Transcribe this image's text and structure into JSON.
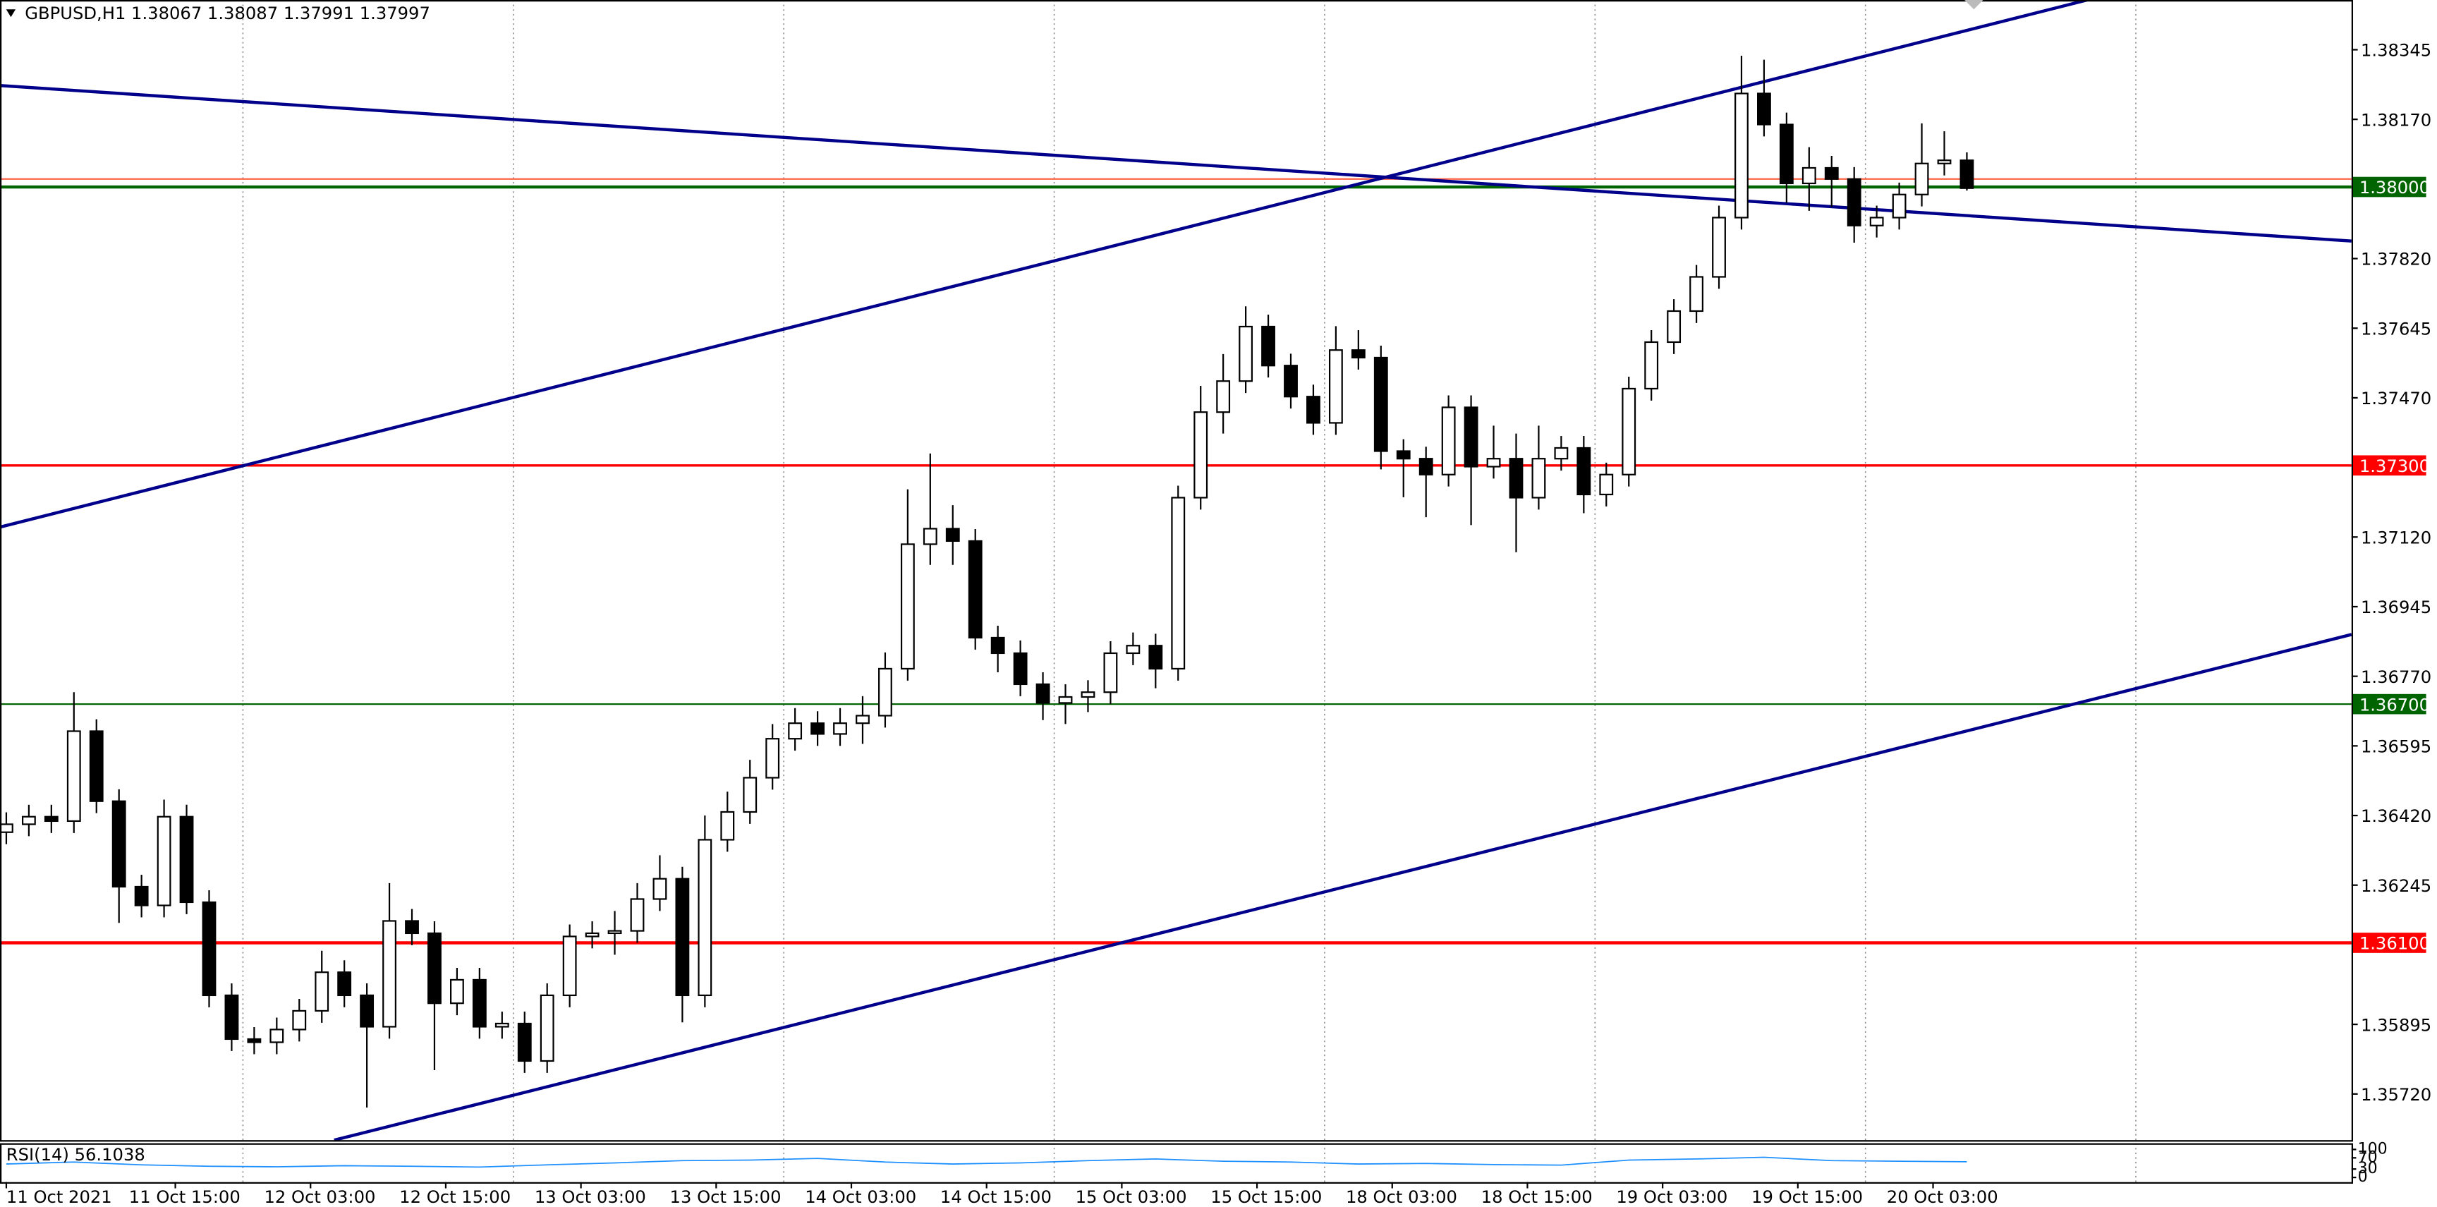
{
  "chart_data": {
    "type": "candlestick",
    "title": "GBPUSD,H1  1.38067 1.38087 1.37991 1.37997",
    "ohlc": {
      "open": [
        1.36378,
        1.36398,
        1.36417,
        1.36406,
        1.36632,
        1.36456,
        1.36241,
        1.36194,
        1.36417,
        1.36202,
        1.35968,
        1.35858,
        1.3585,
        1.35882,
        1.35929,
        1.36026,
        1.35968,
        1.35889,
        1.36155,
        1.36124,
        1.35948,
        1.36007,
        1.35889,
        1.35897,
        1.35803,
        1.35968,
        1.36116,
        1.36124,
        1.3613,
        1.3621,
        1.36261,
        1.35968,
        1.36359,
        1.36429,
        1.36515,
        1.36613,
        1.36652,
        1.36625,
        1.36652,
        1.36671,
        1.36789,
        1.37102,
        1.37141,
        1.3711,
        1.36867,
        1.36828,
        1.3675,
        1.36703,
        1.36718,
        1.3673,
        1.36828,
        1.36847,
        1.36789,
        1.37219,
        1.37434,
        1.37512,
        1.37649,
        1.37551,
        1.37473,
        1.37407,
        1.3759,
        1.37571,
        1.37336,
        1.37317,
        1.37277,
        1.37446,
        1.37297,
        1.37317,
        1.37219,
        1.37317,
        1.37344,
        1.37227,
        1.37277,
        1.37493,
        1.3761,
        1.37688,
        1.37774,
        1.37923,
        1.38235,
        1.38157,
        1.38009,
        1.38048,
        1.3802,
        1.37903,
        1.37923,
        1.37981,
        1.38059,
        1.38067
      ],
      "high": [
        1.36428,
        1.36447,
        1.36447,
        1.3673,
        1.36662,
        1.36486,
        1.36271,
        1.3646,
        1.36447,
        1.36232,
        1.35998,
        1.35888,
        1.35912,
        1.35959,
        1.3608,
        1.36056,
        1.35998,
        1.3625,
        1.36185,
        1.36154,
        1.36037,
        1.36037,
        1.35927,
        1.35927,
        1.35998,
        1.36146,
        1.36154,
        1.3618,
        1.3625,
        1.3632,
        1.36291,
        1.3642,
        1.3648,
        1.3656,
        1.3665,
        1.3669,
        1.36682,
        1.3669,
        1.3672,
        1.3683,
        1.3724,
        1.3733,
        1.372,
        1.3714,
        1.36897,
        1.3686,
        1.3678,
        1.3675,
        1.3676,
        1.36858,
        1.3688,
        1.36877,
        1.37249,
        1.375,
        1.3758,
        1.377,
        1.37679,
        1.37581,
        1.37503,
        1.3765,
        1.3764,
        1.37601,
        1.37366,
        1.37347,
        1.37476,
        1.37476,
        1.374,
        1.3738,
        1.374,
        1.37374,
        1.37374,
        1.37307,
        1.37523,
        1.3764,
        1.37718,
        1.37804,
        1.37953,
        1.3833,
        1.3832,
        1.38187,
        1.381,
        1.38078,
        1.3805,
        1.37953,
        1.38011,
        1.3816,
        1.3814,
        1.38087
      ],
      "low": [
        1.36348,
        1.36368,
        1.36376,
        1.36376,
        1.36426,
        1.3615,
        1.36164,
        1.36164,
        1.36172,
        1.35938,
        1.35828,
        1.3582,
        1.3582,
        1.35852,
        1.35899,
        1.35938,
        1.35686,
        1.35859,
        1.36094,
        1.3578,
        1.35918,
        1.35859,
        1.35859,
        1.35773,
        1.35773,
        1.35938,
        1.36086,
        1.3607,
        1.361,
        1.3618,
        1.359,
        1.35938,
        1.36329,
        1.36399,
        1.36485,
        1.36583,
        1.36595,
        1.36595,
        1.366,
        1.36641,
        1.36759,
        1.3705,
        1.3705,
        1.36837,
        1.3678,
        1.3672,
        1.3666,
        1.3665,
        1.3668,
        1.367,
        1.36798,
        1.3674,
        1.36759,
        1.37189,
        1.3738,
        1.37482,
        1.37521,
        1.37443,
        1.37377,
        1.37377,
        1.37541,
        1.3729,
        1.3722,
        1.3717,
        1.37247,
        1.3715,
        1.37267,
        1.37082,
        1.37189,
        1.37287,
        1.3718,
        1.37197,
        1.37247,
        1.37463,
        1.3758,
        1.37658,
        1.37744,
        1.37893,
        1.38127,
        1.3796,
        1.3794,
        1.3795,
        1.3786,
        1.37873,
        1.37893,
        1.37951,
        1.38029,
        1.37991
      ],
      "close": [
        1.36398,
        1.36417,
        1.36406,
        1.36632,
        1.36456,
        1.36241,
        1.36194,
        1.36417,
        1.36202,
        1.35968,
        1.35858,
        1.3585,
        1.35882,
        1.35929,
        1.36026,
        1.35968,
        1.35889,
        1.36155,
        1.36124,
        1.35948,
        1.36007,
        1.35889,
        1.35897,
        1.35803,
        1.35968,
        1.36116,
        1.36124,
        1.3613,
        1.3621,
        1.36261,
        1.35968,
        1.36359,
        1.36429,
        1.36515,
        1.36613,
        1.36652,
        1.36625,
        1.36652,
        1.36671,
        1.36789,
        1.37102,
        1.37141,
        1.3711,
        1.36867,
        1.36828,
        1.3675,
        1.36703,
        1.36718,
        1.3673,
        1.36828,
        1.36847,
        1.36789,
        1.37219,
        1.37434,
        1.37512,
        1.37649,
        1.37551,
        1.37473,
        1.37407,
        1.3759,
        1.37571,
        1.37336,
        1.37317,
        1.37277,
        1.37446,
        1.37297,
        1.37317,
        1.37219,
        1.37317,
        1.37344,
        1.37227,
        1.37277,
        1.37493,
        1.3761,
        1.37688,
        1.37774,
        1.37923,
        1.38235,
        1.38157,
        1.38009,
        1.38048,
        1.3802,
        1.37903,
        1.37923,
        1.37981,
        1.38059,
        1.38067,
        1.37997
      ]
    },
    "bull_color": "#ffffff",
    "bear_color": "#000000",
    "xlim": [
      -0.28,
      104.07
    ],
    "ylim": [
      1.35604,
      1.3847
    ],
    "yticks": [
      1.38345,
      {
        "value": 1.3817,
        "label": "1.38170"
      },
      {
        "value": 1.3782,
        "label": "1.37820"
      },
      1.37645,
      {
        "value": 1.3747,
        "label": "1.37470"
      },
      {
        "value": 1.3712,
        "label": "1.37120"
      },
      1.36945,
      {
        "value": 1.3677,
        "label": "1.36770"
      },
      1.36595,
      {
        "value": 1.3642,
        "label": "1.36420"
      },
      1.36245,
      1.35895,
      {
        "value": 1.3572,
        "label": "1.35720"
      }
    ],
    "xticks": [
      {
        "value": 0,
        "label": "11 Oct 2021"
      },
      {
        "value": 7.5,
        "label": "11 Oct 15:00"
      },
      {
        "value": 13.5,
        "label": "12 Oct 03:00"
      },
      {
        "value": 19.5,
        "label": "12 Oct 15:00"
      },
      {
        "value": 25.5,
        "label": "13 Oct 03:00"
      },
      {
        "value": 31.5,
        "label": "13 Oct 15:00"
      },
      {
        "value": 37.5,
        "label": "14 Oct 03:00"
      },
      {
        "value": 43.5,
        "label": "14 Oct 15:00"
      },
      {
        "value": 49.5,
        "label": "15 Oct 03:00"
      },
      {
        "value": 55.5,
        "label": "15 Oct 15:00"
      },
      {
        "value": 61.5,
        "label": "18 Oct 03:00"
      },
      {
        "value": 67.5,
        "label": "18 Oct 15:00"
      },
      {
        "value": 73.5,
        "label": "19 Oct 03:00"
      },
      {
        "value": 79.5,
        "label": "19 Oct 15:00"
      },
      {
        "value": 85.5,
        "label": "20 Oct 03:00"
      }
    ],
    "vgrid": [
      10.5,
      22.5,
      34.5,
      46.5,
      58.5,
      70.5,
      82.5,
      94.5
    ],
    "levels": [
      {
        "value": 1.3802,
        "color": "#ff6347",
        "width": 1
      },
      {
        "value": 1.38,
        "label": "1.38000",
        "color": "#006400",
        "width": 2
      },
      {
        "value": 1.373,
        "label": "1.37300",
        "color": "#ff0000",
        "width": 1.5
      },
      {
        "value": 1.367,
        "label": "1.36700",
        "color": "#006400",
        "width": 1
      },
      {
        "value": 1.361,
        "label": "1.36100",
        "color": "#ff0000",
        "width": 2
      }
    ],
    "trendlines": [
      {
        "color": "#00008b",
        "points": [
          [
            -0.28,
            1.38255
          ],
          [
            104.07,
            1.37864
          ]
        ]
      },
      {
        "color": "#00008b",
        "points": [
          [
            -0.28,
            1.37145
          ],
          [
            92.34,
            1.3847
          ]
        ]
      },
      {
        "color": "#00008b",
        "points": [
          [
            14.55,
            1.35604
          ],
          [
            104.07,
            1.36875
          ]
        ]
      }
    ],
    "rsi": {
      "label": "RSI(14) 56.1038",
      "color": "#1e90ff",
      "ylim": [
        0,
        100
      ],
      "yticks": [
        100,
        70,
        30,
        0
      ],
      "x": [
        0,
        3,
        6,
        9,
        12,
        15,
        18,
        21,
        24,
        27,
        30,
        33,
        36,
        39,
        42,
        45,
        48,
        51,
        54,
        57,
        60,
        63,
        66,
        69,
        72,
        75,
        78,
        81,
        84,
        87
      ],
      "values": [
        48,
        55,
        45,
        40,
        38,
        42,
        40,
        37,
        45,
        52,
        60,
        62,
        68,
        55,
        48,
        52,
        60,
        66,
        58,
        55,
        48,
        50,
        46,
        44,
        62,
        66,
        72,
        60,
        58,
        56
      ]
    }
  }
}
